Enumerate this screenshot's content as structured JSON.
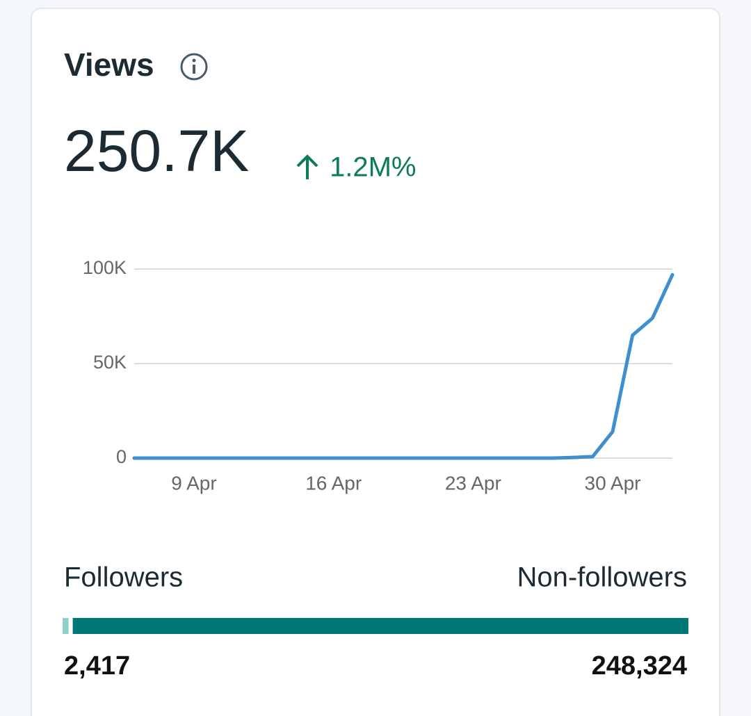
{
  "header": {
    "title": "Views"
  },
  "total": "250.7K",
  "change": "1.2M%",
  "chart_data": {
    "type": "line",
    "categories": [
      null,
      null,
      null,
      "9 Apr",
      null,
      null,
      null,
      null,
      null,
      null,
      "16 Apr",
      null,
      null,
      null,
      null,
      null,
      null,
      "23 Apr",
      null,
      null,
      null,
      null,
      null,
      null,
      "30 Apr",
      null,
      null,
      null
    ],
    "series": [
      {
        "name": null,
        "color": "#3f8fcf",
        "values": [
          0,
          0,
          0,
          0,
          0,
          0,
          0,
          0,
          0,
          0,
          0,
          0,
          0,
          0,
          0,
          0,
          0,
          0,
          0,
          0,
          0,
          0,
          300,
          800,
          14000,
          65000,
          74000,
          97000
        ]
      }
    ],
    "ylim": [
      0,
      100000
    ],
    "yticks": [
      0,
      {
        "value": 50000,
        "label": "50K"
      },
      {
        "value": 100000,
        "label": "100K"
      }
    ],
    "grid": true
  },
  "audience": {
    "type": "stacked-bar",
    "categories": [
      "Followers",
      "Non-followers"
    ],
    "values": [
      2417,
      248324
    ],
    "value_labels": [
      "2,417",
      "248,324"
    ],
    "colors": [
      "#8fd0ca",
      "#00787a"
    ]
  }
}
